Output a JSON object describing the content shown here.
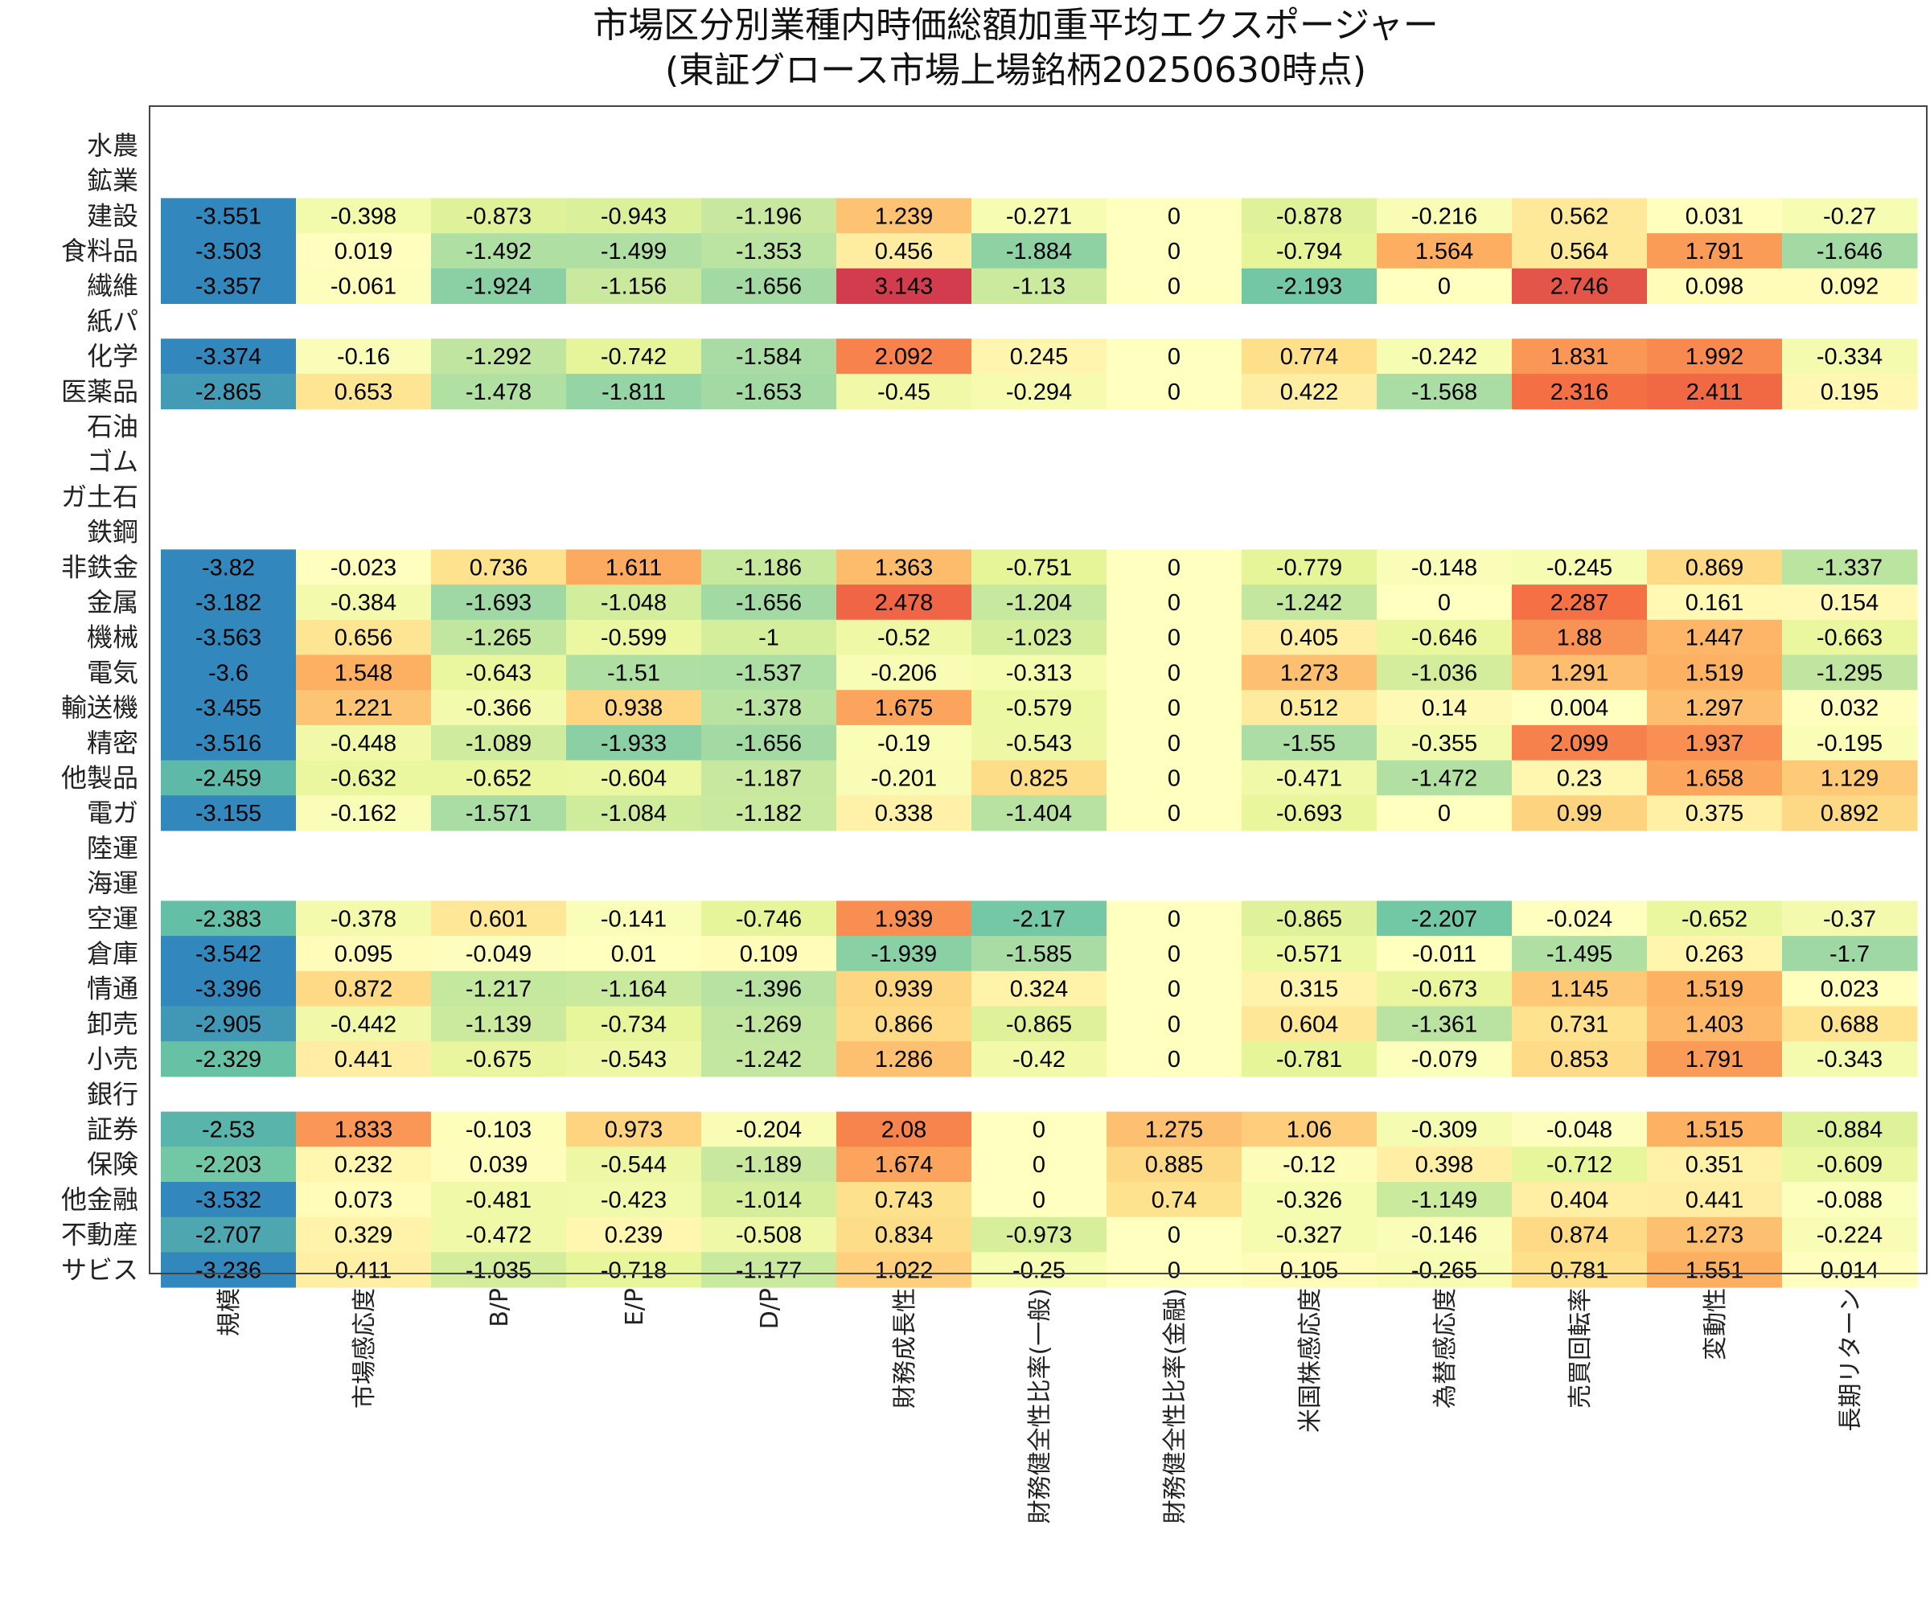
{
  "chart_data": {
    "type": "heatmap",
    "title": "市場区分別業種内時価総額加重平均エクスポージャー",
    "subtitle": "(東証グロース市場上場銘柄20250630時点)",
    "rows": [
      "水農",
      "鉱業",
      "建設",
      "食料品",
      "繊維",
      "紙パ",
      "化学",
      "医薬品",
      "石油",
      "ゴム",
      "ガ土石",
      "鉄鋼",
      "非鉄金",
      "金属",
      "機械",
      "電気",
      "輸送機",
      "精密",
      "他製品",
      "電ガ",
      "陸運",
      "海運",
      "空運",
      "倉庫",
      "情通",
      "卸売",
      "小売",
      "銀行",
      "証券",
      "保険",
      "他金融",
      "不動産",
      "サビス"
    ],
    "columns": [
      "規模",
      "市場感応度",
      "B/P",
      "E/P",
      "D/P",
      "財務成長性",
      "財務健全性比率(一般)",
      "財務健全性比率(金融)",
      "米国株感応度",
      "為替感応度",
      "売買回転率",
      "変動性",
      "長期リターン"
    ],
    "values": [
      null,
      null,
      [
        -3.551,
        -0.398,
        -0.873,
        -0.943,
        -1.196,
        1.239,
        -0.271,
        0,
        -0.878,
        -0.216,
        0.562,
        0.031,
        -0.27
      ],
      [
        -3.503,
        0.019,
        -1.492,
        -1.499,
        -1.353,
        0.456,
        -1.884,
        0,
        -0.794,
        1.564,
        0.564,
        1.791,
        -1.646
      ],
      [
        -3.357,
        -0.061,
        -1.924,
        -1.156,
        -1.656,
        3.143,
        -1.13,
        0,
        -2.193,
        0,
        2.746,
        0.098,
        0.092
      ],
      null,
      [
        -3.374,
        -0.16,
        -1.292,
        -0.742,
        -1.584,
        2.092,
        0.245,
        0,
        0.774,
        -0.242,
        1.831,
        1.992,
        -0.334
      ],
      [
        -2.865,
        0.653,
        -1.478,
        -1.811,
        -1.653,
        -0.45,
        -0.294,
        0,
        0.422,
        -1.568,
        2.316,
        2.411,
        0.195
      ],
      null,
      null,
      null,
      null,
      [
        -3.82,
        -0.023,
        0.736,
        1.611,
        -1.186,
        1.363,
        -0.751,
        0,
        -0.779,
        -0.148,
        -0.245,
        0.869,
        -1.337
      ],
      [
        -3.182,
        -0.384,
        -1.693,
        -1.048,
        -1.656,
        2.478,
        -1.204,
        0,
        -1.242,
        0,
        2.287,
        0.161,
        0.154
      ],
      [
        -3.563,
        0.656,
        -1.265,
        -0.599,
        -1,
        -0.52,
        -1.023,
        0,
        0.405,
        -0.646,
        1.88,
        1.447,
        -0.663
      ],
      [
        -3.6,
        1.548,
        -0.643,
        -1.51,
        -1.537,
        -0.206,
        -0.313,
        0,
        1.273,
        -1.036,
        1.291,
        1.519,
        -1.295
      ],
      [
        -3.455,
        1.221,
        -0.366,
        0.938,
        -1.378,
        1.675,
        -0.579,
        0,
        0.512,
        0.14,
        0.004,
        1.297,
        0.032
      ],
      [
        -3.516,
        -0.448,
        -1.089,
        -1.933,
        -1.656,
        -0.19,
        -0.543,
        0,
        -1.55,
        -0.355,
        2.099,
        1.937,
        -0.195
      ],
      [
        -2.459,
        -0.632,
        -0.652,
        -0.604,
        -1.187,
        -0.201,
        0.825,
        0,
        -0.471,
        -1.472,
        0.23,
        1.658,
        1.129
      ],
      [
        -3.155,
        -0.162,
        -1.571,
        -1.084,
        -1.182,
        0.338,
        -1.404,
        0,
        -0.693,
        0,
        0.99,
        0.375,
        0.892
      ],
      null,
      null,
      [
        -2.383,
        -0.378,
        0.601,
        -0.141,
        -0.746,
        1.939,
        -2.17,
        0,
        -0.865,
        -2.207,
        -0.024,
        -0.652,
        -0.37
      ],
      [
        -3.542,
        0.095,
        -0.049,
        0.01,
        0.109,
        -1.939,
        -1.585,
        0,
        -0.571,
        -0.011,
        -1.495,
        0.263,
        -1.7
      ],
      [
        -3.396,
        0.872,
        -1.217,
        -1.164,
        -1.396,
        0.939,
        0.324,
        0,
        0.315,
        -0.673,
        1.145,
        1.519,
        0.023
      ],
      [
        -2.905,
        -0.442,
        -1.139,
        -0.734,
        -1.269,
        0.866,
        -0.865,
        0,
        0.604,
        -1.361,
        0.731,
        1.403,
        0.688
      ],
      [
        -2.329,
        0.441,
        -0.675,
        -0.543,
        -1.242,
        1.286,
        -0.42,
        0,
        -0.781,
        -0.079,
        0.853,
        1.791,
        -0.343
      ],
      null,
      [
        -2.53,
        1.833,
        -0.103,
        0.973,
        -0.204,
        2.08,
        0,
        1.275,
        1.06,
        -0.309,
        -0.048,
        1.515,
        -0.884
      ],
      [
        -2.203,
        0.232,
        0.039,
        -0.544,
        -1.189,
        1.674,
        0,
        0.885,
        -0.12,
        0.398,
        -0.712,
        0.351,
        -0.609
      ],
      [
        -3.532,
        0.073,
        -0.481,
        -0.423,
        -1.014,
        0.743,
        0,
        0.74,
        -0.326,
        -1.149,
        0.404,
        0.441,
        -0.088
      ],
      [
        -2.707,
        0.329,
        -0.472,
        0.239,
        -0.508,
        0.834,
        -0.973,
        0,
        -0.327,
        -0.146,
        0.874,
        1.273,
        -0.224
      ],
      [
        -3.236,
        0.411,
        -1.035,
        -0.718,
        -1.177,
        1.022,
        -0.25,
        0,
        0.105,
        -0.265,
        0.781,
        1.551,
        0.014
      ]
    ],
    "colormap": "Spectral_r",
    "grid": false,
    "legend": "none"
  }
}
